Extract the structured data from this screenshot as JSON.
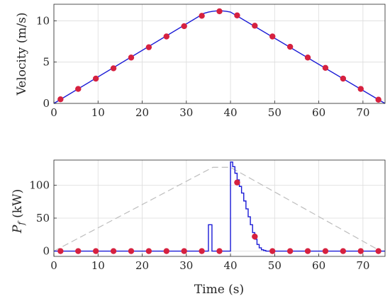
{
  "chart_data": [
    {
      "type": "line",
      "title": "",
      "xlabel": "",
      "ylabel": "Velocity (m/s)",
      "xlim": [
        0,
        75
      ],
      "ylim": [
        0,
        12
      ],
      "xticks": [
        "0",
        "10",
        "20",
        "30",
        "40",
        "50",
        "60",
        "70"
      ],
      "yticks": [
        "0",
        "5",
        "10"
      ],
      "grid": true,
      "series": [
        {
          "role": "velocity-profile",
          "color": "#1a1ad6",
          "x": [
            0,
            34,
            35,
            36,
            37,
            38,
            39,
            40,
            74,
            75
          ],
          "y": [
            0,
            10.9,
            11.05,
            11.15,
            11.2,
            11.2,
            11.15,
            11.05,
            0.3,
            0
          ]
        },
        {
          "role": "markers",
          "color": "#d6213f",
          "x": [
            1.5,
            5.5,
            9.5,
            13.5,
            17.5,
            21.5,
            25.5,
            29.5,
            33.5,
            37.5,
            41.5,
            45.5,
            49.5,
            53.5,
            57.5,
            61.5,
            65.5,
            69.5,
            73.5
          ],
          "y": [
            0.5,
            1.75,
            3.0,
            4.25,
            5.55,
            6.8,
            8.1,
            9.35,
            10.6,
            11.15,
            10.65,
            9.4,
            8.1,
            6.85,
            5.55,
            4.3,
            3.0,
            1.75,
            0.45
          ]
        }
      ]
    },
    {
      "type": "line",
      "title": "",
      "xlabel": "Time (s)",
      "ylabel": "P_f (kW)",
      "ylabel_main": "P",
      "ylabel_sub": "f",
      "ylabel_unit": " (kW)",
      "xlim": [
        0,
        75
      ],
      "ylim": [
        -8,
        138
      ],
      "xticks": [
        "0",
        "10",
        "20",
        "30",
        "40",
        "50",
        "60",
        "70"
      ],
      "yticks": [
        "0",
        "50",
        "100"
      ],
      "grid": true,
      "series": [
        {
          "role": "dashed-reference",
          "color": "#bdbdbd",
          "x": [
            0,
            36,
            40,
            74
          ],
          "y": [
            0,
            127,
            127,
            0
          ]
        },
        {
          "role": "power-profile",
          "color": "#1a1ad6",
          "x": [
            0,
            35,
            35,
            35.8,
            35.8,
            40,
            40,
            40.5,
            40.5,
            41,
            41,
            41.5,
            41.5,
            42,
            42,
            42.5,
            42.5,
            43,
            43,
            43.5,
            43.5,
            44,
            44,
            44.5,
            44.5,
            45,
            45,
            45.5,
            45.5,
            46,
            46,
            46.5,
            46.5,
            47,
            47,
            47.5,
            47.5,
            48,
            48,
            75
          ],
          "y": [
            0,
            0,
            40,
            40,
            0,
            0,
            135,
            135,
            128,
            128,
            118,
            118,
            108,
            108,
            98,
            98,
            88,
            88,
            76,
            76,
            64,
            64,
            52,
            52,
            40,
            40,
            28,
            28,
            18,
            18,
            10,
            10,
            5,
            5,
            2,
            2,
            1,
            1,
            0,
            0
          ]
        },
        {
          "role": "markers",
          "color": "#d6213f",
          "x": [
            1.5,
            5.5,
            9.5,
            13.5,
            17.5,
            21.5,
            25.5,
            29.5,
            33.5,
            37.5,
            41.5,
            45.5,
            49.5,
            53.5,
            57.5,
            61.5,
            65.5,
            69.5,
            73.5
          ],
          "y": [
            0,
            0,
            0,
            0,
            0,
            0,
            0,
            0,
            0,
            0,
            104,
            22,
            0,
            0,
            0,
            0,
            0,
            0,
            0
          ]
        }
      ]
    }
  ]
}
